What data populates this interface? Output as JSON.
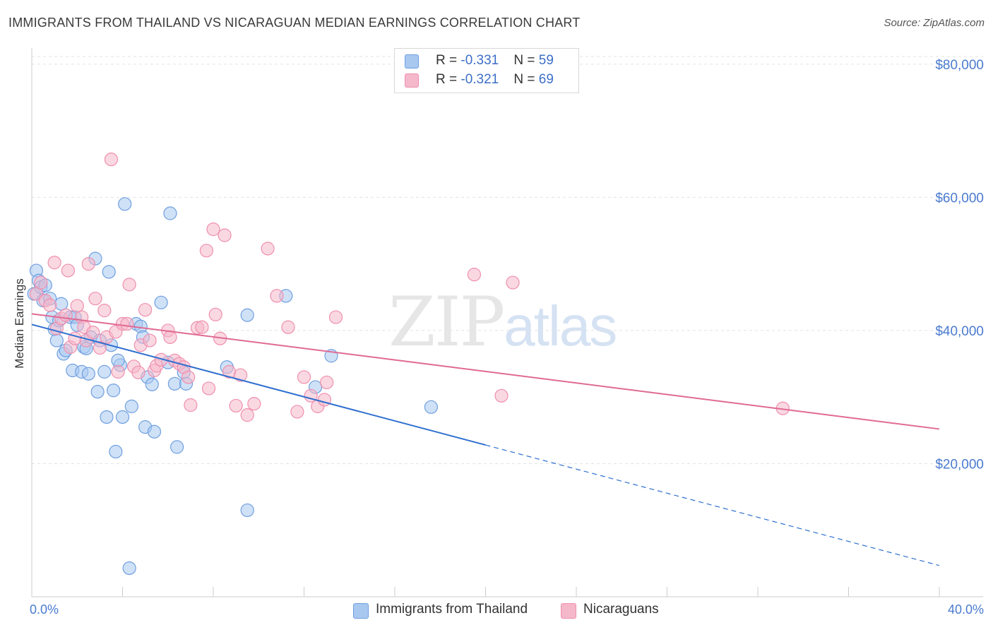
{
  "title": "IMMIGRANTS FROM THAILAND VS NICARAGUAN MEDIAN EARNINGS CORRELATION CHART",
  "source": "Source: ZipAtlas.com",
  "watermark": {
    "zip": "ZIP",
    "atlas": "atlas"
  },
  "legend": {
    "rows": [
      {
        "r_label": "R = ",
        "r_value": "-0.331",
        "n_label": "N = ",
        "n_value": "59",
        "color": "#a8c8f0"
      },
      {
        "r_label": "R = ",
        "r_value": "-0.321",
        "n_label": "N = ",
        "n_value": "69",
        "color": "#f5b8cb"
      }
    ]
  },
  "bottom_legend": [
    {
      "label": "Immigrants from Thailand",
      "color": "#a8c8f0"
    },
    {
      "label": "Nicaraguans",
      "color": "#f5b8cb"
    }
  ],
  "chart_data": {
    "type": "scatter",
    "title": "IMMIGRANTS FROM THAILAND VS NICARAGUAN MEDIAN EARNINGS CORRELATION CHART",
    "xlabel": "",
    "ylabel": "Median Earnings",
    "xlim": [
      0,
      40
    ],
    "ylim": [
      0,
      82000
    ],
    "x_tick_labels": [
      "0.0%",
      "40.0%"
    ],
    "y_ticks": [
      20000,
      40000,
      60000,
      80000
    ],
    "y_tick_labels": [
      "$20,000",
      "$40,000",
      "$60,000",
      "$80,000"
    ],
    "grid": true,
    "legend_position": "top-center",
    "series": [
      {
        "name": "Immigrants from Thailand",
        "color": "#6f9fe0",
        "fill": "#a8c8f0",
        "trend": {
          "x0": 0,
          "y0": 40900,
          "x1": 20,
          "y1": 22800,
          "dash_to_x": 40,
          "dash_to_y": 4700,
          "color": "#2f6fd0"
        },
        "points": [
          [
            0.1,
            45500
          ],
          [
            0.2,
            49000
          ],
          [
            0.3,
            47500
          ],
          [
            0.4,
            46500
          ],
          [
            0.5,
            44500
          ],
          [
            0.6,
            46800
          ],
          [
            0.8,
            44800
          ],
          [
            0.9,
            42000
          ],
          [
            1.0,
            40200
          ],
          [
            1.1,
            38500
          ],
          [
            1.3,
            44000
          ],
          [
            1.4,
            36500
          ],
          [
            1.5,
            37000
          ],
          [
            1.7,
            42000
          ],
          [
            1.8,
            34000
          ],
          [
            1.9,
            42000
          ],
          [
            2.0,
            40800
          ],
          [
            2.2,
            33800
          ],
          [
            2.3,
            37500
          ],
          [
            2.4,
            37300
          ],
          [
            2.6,
            39000
          ],
          [
            2.8,
            50800
          ],
          [
            2.9,
            30800
          ],
          [
            3.0,
            38500
          ],
          [
            3.2,
            33800
          ],
          [
            3.3,
            27000
          ],
          [
            3.4,
            48800
          ],
          [
            3.5,
            37800
          ],
          [
            3.6,
            31000
          ],
          [
            3.7,
            21800
          ],
          [
            3.9,
            34800
          ],
          [
            4.0,
            27000
          ],
          [
            4.1,
            59000
          ],
          [
            4.3,
            4300
          ],
          [
            4.4,
            28600
          ],
          [
            4.6,
            41000
          ],
          [
            4.8,
            40600
          ],
          [
            5.0,
            25500
          ],
          [
            5.1,
            33000
          ],
          [
            5.3,
            31900
          ],
          [
            5.4,
            24800
          ],
          [
            5.7,
            44200
          ],
          [
            6.0,
            35200
          ],
          [
            6.1,
            57600
          ],
          [
            6.3,
            32000
          ],
          [
            6.4,
            22500
          ],
          [
            6.7,
            33700
          ],
          [
            6.8,
            32000
          ],
          [
            8.6,
            34500
          ],
          [
            9.5,
            42300
          ],
          [
            9.5,
            13000
          ],
          [
            11.2,
            45200
          ],
          [
            12.5,
            31500
          ],
          [
            13.2,
            36200
          ],
          [
            17.6,
            28500
          ],
          [
            2.5,
            33500
          ],
          [
            1.2,
            41500
          ],
          [
            4.9,
            39000
          ],
          [
            3.8,
            35500
          ]
        ]
      },
      {
        "name": "Nicaraguans",
        "color": "#ef8fae",
        "fill": "#f5b8cb",
        "trend": {
          "x0": 0,
          "y0": 42500,
          "x1": 40,
          "y1": 25200,
          "color": "#e06a94"
        },
        "points": [
          [
            0.2,
            45500
          ],
          [
            0.4,
            47200
          ],
          [
            0.6,
            44500
          ],
          [
            0.8,
            43800
          ],
          [
            1.0,
            50200
          ],
          [
            1.1,
            40300
          ],
          [
            1.3,
            41800
          ],
          [
            1.5,
            42300
          ],
          [
            1.6,
            49000
          ],
          [
            1.7,
            37500
          ],
          [
            1.9,
            38800
          ],
          [
            2.0,
            43700
          ],
          [
            2.2,
            42000
          ],
          [
            2.3,
            40500
          ],
          [
            2.4,
            38500
          ],
          [
            2.5,
            50000
          ],
          [
            2.7,
            39700
          ],
          [
            2.8,
            44800
          ],
          [
            3.0,
            37400
          ],
          [
            3.2,
            43000
          ],
          [
            3.3,
            39000
          ],
          [
            3.5,
            65700
          ],
          [
            3.7,
            39800
          ],
          [
            3.8,
            33800
          ],
          [
            4.0,
            41000
          ],
          [
            4.2,
            41000
          ],
          [
            4.3,
            46900
          ],
          [
            4.5,
            34600
          ],
          [
            4.7,
            33700
          ],
          [
            4.8,
            37800
          ],
          [
            5.0,
            43100
          ],
          [
            5.2,
            38500
          ],
          [
            5.4,
            34000
          ],
          [
            5.5,
            34700
          ],
          [
            5.7,
            35600
          ],
          [
            6.0,
            40000
          ],
          [
            6.1,
            39000
          ],
          [
            6.3,
            35500
          ],
          [
            6.5,
            35000
          ],
          [
            6.7,
            34500
          ],
          [
            6.9,
            33000
          ],
          [
            7.0,
            28800
          ],
          [
            7.3,
            40400
          ],
          [
            7.5,
            40500
          ],
          [
            7.7,
            52000
          ],
          [
            7.8,
            31300
          ],
          [
            8.0,
            55200
          ],
          [
            8.1,
            42400
          ],
          [
            8.3,
            38800
          ],
          [
            8.5,
            54300
          ],
          [
            8.7,
            33800
          ],
          [
            9.0,
            28700
          ],
          [
            9.2,
            33300
          ],
          [
            9.5,
            27300
          ],
          [
            9.8,
            29000
          ],
          [
            10.4,
            52300
          ],
          [
            10.8,
            45200
          ],
          [
            11.3,
            40500
          ],
          [
            11.7,
            27800
          ],
          [
            12.0,
            33000
          ],
          [
            12.3,
            30200
          ],
          [
            12.6,
            28600
          ],
          [
            12.9,
            29600
          ],
          [
            13.0,
            32200
          ],
          [
            13.4,
            42000
          ],
          [
            19.5,
            48400
          ],
          [
            20.7,
            30200
          ],
          [
            21.2,
            47200
          ],
          [
            33.1,
            28300
          ]
        ]
      }
    ]
  }
}
